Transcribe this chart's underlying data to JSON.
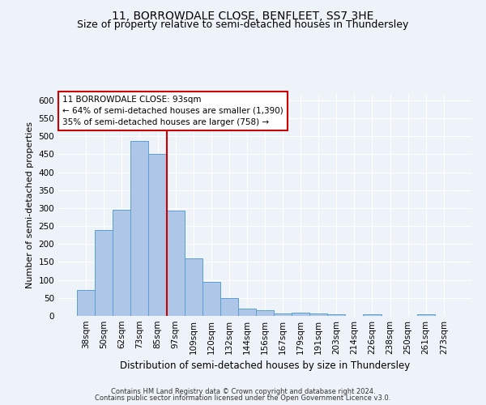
{
  "title": "11, BORROWDALE CLOSE, BENFLEET, SS7 3HE",
  "subtitle": "Size of property relative to semi-detached houses in Thundersley",
  "xlabel": "Distribution of semi-detached houses by size in Thundersley",
  "ylabel": "Number of semi-detached properties",
  "footer_line1": "Contains HM Land Registry data © Crown copyright and database right 2024.",
  "footer_line2": "Contains public sector information licensed under the Open Government Licence v3.0.",
  "categories": [
    "38sqm",
    "50sqm",
    "62sqm",
    "73sqm",
    "85sqm",
    "97sqm",
    "109sqm",
    "120sqm",
    "132sqm",
    "144sqm",
    "156sqm",
    "167sqm",
    "179sqm",
    "191sqm",
    "203sqm",
    "214sqm",
    "226sqm",
    "238sqm",
    "250sqm",
    "261sqm",
    "273sqm"
  ],
  "values": [
    72,
    240,
    295,
    487,
    450,
    293,
    160,
    95,
    49,
    20,
    15,
    7,
    10,
    6,
    5,
    0,
    5,
    0,
    0,
    5,
    0
  ],
  "bar_color": "#aec6e8",
  "bar_edge_color": "#5a9fd4",
  "vline_index": 4.5,
  "annotation_title": "11 BORROWDALE CLOSE: 93sqm",
  "annotation_line1": "← 64% of semi-detached houses are smaller (1,390)",
  "annotation_line2": "35% of semi-detached houses are larger (758) →",
  "annotation_box_color": "#ffffff",
  "annotation_box_edge": "#cc0000",
  "vline_color": "#cc0000",
  "ylim": [
    0,
    620
  ],
  "yticks": [
    0,
    50,
    100,
    150,
    200,
    250,
    300,
    350,
    400,
    450,
    500,
    550,
    600
  ],
  "bg_color": "#eef2f9",
  "grid_color": "#ffffff",
  "title_fontsize": 10,
  "subtitle_fontsize": 9,
  "ylabel_fontsize": 8,
  "xlabel_fontsize": 8.5,
  "tick_fontsize": 7.5,
  "footer_fontsize": 6,
  "annotation_fontsize": 7.5
}
